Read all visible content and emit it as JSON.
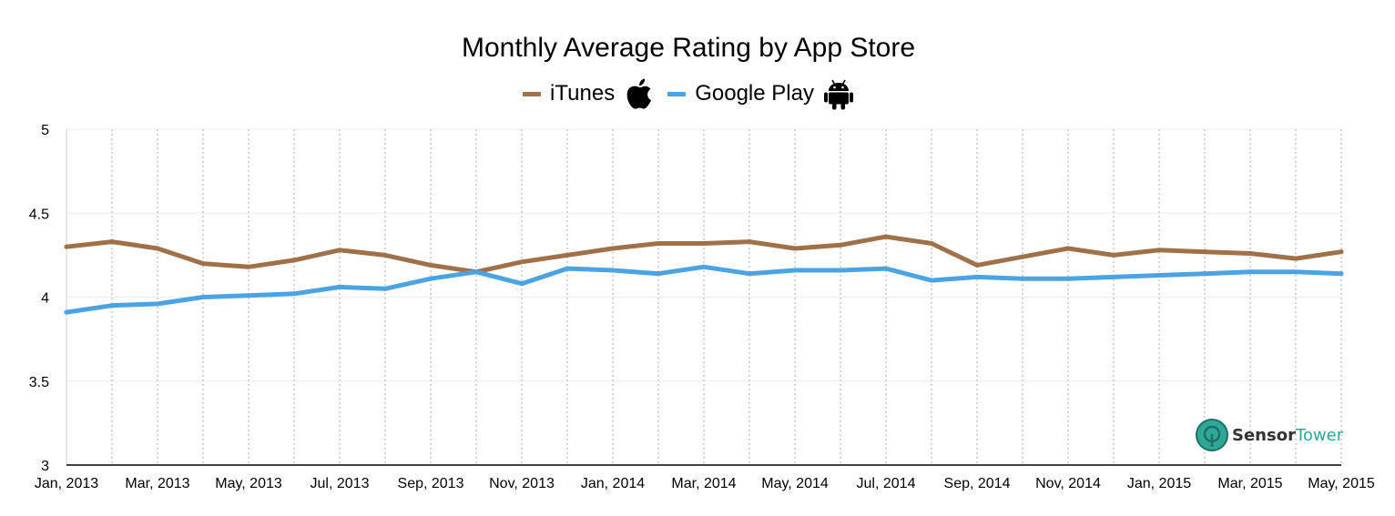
{
  "chart_data": {
    "type": "line",
    "title": "Monthly Average Rating by App Store",
    "x": [
      "Jan, 2013",
      "Feb, 2013",
      "Mar, 2013",
      "Apr, 2013",
      "May, 2013",
      "Jun, 2013",
      "Jul, 2013",
      "Aug, 2013",
      "Sep, 2013",
      "Oct, 2013",
      "Nov, 2013",
      "Dec, 2013",
      "Jan, 2014",
      "Feb, 2014",
      "Mar, 2014",
      "Apr, 2014",
      "May, 2014",
      "Jun, 2014",
      "Jul, 2014",
      "Aug, 2014",
      "Sep, 2014",
      "Oct, 2014",
      "Nov, 2014",
      "Dec, 2014",
      "Jan, 2015",
      "Feb, 2015",
      "Mar, 2015",
      "Apr, 2015",
      "May, 2015"
    ],
    "x_tick_labels": [
      "Jan, 2013",
      "Mar, 2013",
      "May, 2013",
      "Jul, 2013",
      "Sep, 2013",
      "Nov, 2013",
      "Jan, 2014",
      "Mar, 2014",
      "May, 2014",
      "Jul, 2014",
      "Sep, 2014",
      "Nov, 2014",
      "Jan, 2015",
      "Mar, 2015",
      "May, 2015"
    ],
    "y_ticks": [
      "3",
      "3.5",
      "4",
      "4.5",
      "5"
    ],
    "ylim": [
      3,
      5
    ],
    "grid": true,
    "legend_position": "top-center",
    "series": [
      {
        "name": "iTunes",
        "color": "#a07148",
        "icon": "apple-icon",
        "values": [
          4.3,
          4.33,
          4.29,
          4.2,
          4.18,
          4.22,
          4.28,
          4.25,
          4.19,
          4.15,
          4.21,
          4.25,
          4.29,
          4.32,
          4.32,
          4.33,
          4.29,
          4.31,
          4.36,
          4.32,
          4.19,
          4.24,
          4.29,
          4.25,
          4.28,
          4.27,
          4.26,
          4.23,
          4.27
        ]
      },
      {
        "name": "Google Play",
        "color": "#4ba3e3",
        "icon": "android-icon",
        "values": [
          3.91,
          3.95,
          3.96,
          4.0,
          4.01,
          4.02,
          4.06,
          4.05,
          4.11,
          4.15,
          4.08,
          4.17,
          4.16,
          4.14,
          4.18,
          4.14,
          4.16,
          4.16,
          4.17,
          4.1,
          4.12,
          4.11,
          4.11,
          4.12,
          4.13,
          4.14,
          4.15,
          4.15,
          4.14
        ]
      }
    ]
  },
  "branding": {
    "part1": "Sensor",
    "part2": "Tower",
    "icon": "sensortower-logo-icon"
  }
}
